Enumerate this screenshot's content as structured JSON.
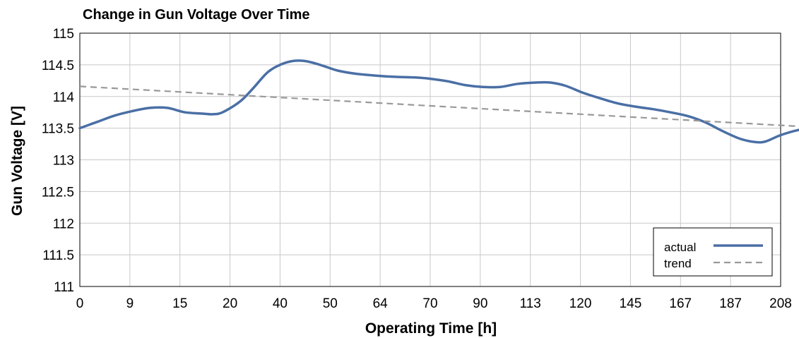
{
  "chart_data": {
    "type": "line",
    "title": "Change in Gun Voltage Over Time",
    "xlabel": "Operating Time [h]",
    "ylabel": "Gun Voltage [V]",
    "x_tick_labels": [
      "0",
      "9",
      "15",
      "20",
      "40",
      "50",
      "64",
      "70",
      "90",
      "113",
      "120",
      "145",
      "167",
      "187",
      "208"
    ],
    "y_ticks": [
      111,
      111.5,
      112,
      112.5,
      113,
      113.5,
      114,
      114.5,
      115
    ],
    "y_tick_labels": [
      "111",
      "111.5",
      "112",
      "112.5",
      "113",
      "113.5",
      "114",
      "114.5",
      "115"
    ],
    "ylim": [
      111,
      115
    ],
    "grid": true,
    "legend_position": "bottom-right",
    "series": [
      {
        "name": "actual",
        "color": "#4a6fa5",
        "style": "solid",
        "points": [
          [
            0,
            113.5
          ],
          [
            0.35,
            113.6
          ],
          [
            0.7,
            113.7
          ],
          [
            1.05,
            113.77
          ],
          [
            1.4,
            113.82
          ],
          [
            1.75,
            113.82
          ],
          [
            2.1,
            113.75
          ],
          [
            2.45,
            113.73
          ],
          [
            2.65,
            113.72
          ],
          [
            2.85,
            113.75
          ],
          [
            3.2,
            113.92
          ],
          [
            3.45,
            114.12
          ],
          [
            3.75,
            114.38
          ],
          [
            4.0,
            114.5
          ],
          [
            4.25,
            114.56
          ],
          [
            4.5,
            114.56
          ],
          [
            4.8,
            114.5
          ],
          [
            5.15,
            114.41
          ],
          [
            5.5,
            114.36
          ],
          [
            5.9,
            114.33
          ],
          [
            6.3,
            114.31
          ],
          [
            6.7,
            114.3
          ],
          [
            7.0,
            114.28
          ],
          [
            7.35,
            114.24
          ],
          [
            7.7,
            114.18
          ],
          [
            8.05,
            114.15
          ],
          [
            8.4,
            114.15
          ],
          [
            8.75,
            114.2
          ],
          [
            9.1,
            114.22
          ],
          [
            9.4,
            114.22
          ],
          [
            9.7,
            114.17
          ],
          [
            10.05,
            114.06
          ],
          [
            10.4,
            113.97
          ],
          [
            10.75,
            113.89
          ],
          [
            11.1,
            113.84
          ],
          [
            11.45,
            113.8
          ],
          [
            11.8,
            113.75
          ],
          [
            12.15,
            113.69
          ],
          [
            12.5,
            113.59
          ],
          [
            12.85,
            113.45
          ],
          [
            13.2,
            113.33
          ],
          [
            13.5,
            113.28
          ],
          [
            13.7,
            113.29
          ],
          [
            14.0,
            113.39
          ],
          [
            14.35,
            113.47
          ],
          [
            14.65,
            113.5
          ],
          [
            14.9,
            113.5
          ],
          [
            15.25,
            113.46
          ],
          [
            15.6,
            113.35
          ],
          [
            15.95,
            113.22
          ],
          [
            16.3,
            113.12
          ],
          [
            16.65,
            113.05
          ],
          [
            17.0,
            113.0
          ],
          [
            17.35,
            112.96
          ],
          [
            17.6,
            112.93
          ],
          [
            17.95,
            112.95
          ],
          [
            18.2,
            112.98
          ],
          [
            18.4,
            113.06
          ],
          [
            18.75,
            113.18
          ],
          [
            19.1,
            113.36
          ],
          [
            19.35,
            113.5
          ]
        ]
      },
      {
        "name": "trend",
        "color": "#999999",
        "style": "dashed",
        "points": [
          [
            0,
            114.16
          ],
          [
            19.35,
            113.31
          ]
        ]
      }
    ]
  }
}
